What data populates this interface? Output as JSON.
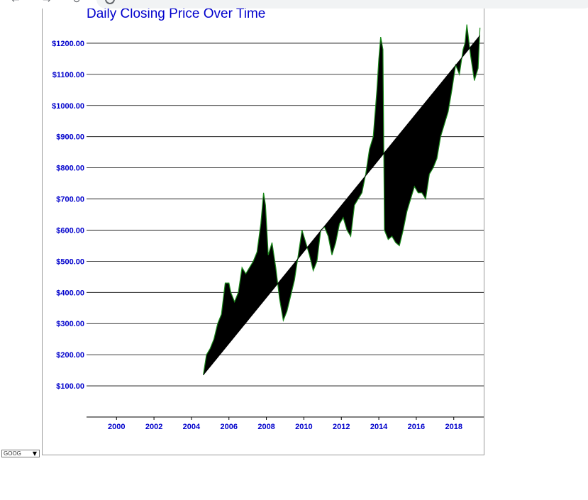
{
  "ticker_select": {
    "value": "GOOG",
    "arrow": "▼"
  },
  "icons": {
    "back": "arrow-left-icon",
    "forward": "arrow-right-icon",
    "reload": "reload-icon",
    "site_info": "info-icon"
  },
  "chart_data": {
    "type": "line",
    "title": "Daily Closing Price Over Time",
    "xlabel": "",
    "ylabel": "",
    "xlim": [
      1998.4,
      2019.6
    ],
    "ylim": [
      0,
      1300
    ],
    "x_ticks": [
      "2000",
      "2002",
      "2004",
      "2006",
      "2008",
      "2010",
      "2012",
      "2014",
      "2016",
      "2018"
    ],
    "y_ticks": [
      "$100.00",
      "$200.00",
      "$300.00",
      "$400.00",
      "$500.00",
      "$600.00",
      "$700.00",
      "$800.00",
      "$900.00",
      "$1000.00",
      "$1100.00",
      "$1200.00"
    ],
    "grid": true,
    "colors": {
      "line": "#1a8a1a",
      "fill": "#000000",
      "ticks": "#0000cc",
      "title": "#0000cc",
      "grid": "#000000"
    },
    "series": [
      {
        "x": [
          2004.63,
          2004.8,
          2005.0,
          2005.2,
          2005.4,
          2005.6,
          2005.8,
          2006.0,
          2006.1,
          2006.3,
          2006.5,
          2006.7,
          2006.9,
          2007.1,
          2007.3,
          2007.5,
          2007.7,
          2007.85,
          2007.95,
          2008.1,
          2008.3,
          2008.5,
          2008.7,
          2008.9,
          2009.1,
          2009.3,
          2009.5,
          2009.7,
          2009.9,
          2010.1,
          2010.3,
          2010.5,
          2010.7,
          2010.9,
          2011.1,
          2011.3,
          2011.5,
          2011.7,
          2011.9,
          2012.1,
          2012.3,
          2012.5,
          2012.7,
          2012.9,
          2013.1,
          2013.3,
          2013.5,
          2013.7,
          2013.9,
          2014.0,
          2014.1,
          2014.22,
          2014.3,
          2014.5,
          2014.7,
          2014.9,
          2015.1,
          2015.3,
          2015.5,
          2015.7,
          2015.9,
          2016.1,
          2016.3,
          2016.5,
          2016.7,
          2016.9,
          2017.1,
          2017.3,
          2017.5,
          2017.7,
          2017.9,
          2018.1,
          2018.3,
          2018.5,
          2018.6,
          2018.7,
          2018.9,
          2019.1,
          2019.3,
          2019.4
        ],
        "values": [
          135,
          200,
          220,
          250,
          300,
          330,
          430,
          430,
          400,
          370,
          400,
          480,
          460,
          480,
          500,
          530,
          620,
          720,
          680,
          520,
          560,
          480,
          380,
          310,
          340,
          390,
          440,
          520,
          600,
          560,
          520,
          470,
          500,
          600,
          610,
          580,
          520,
          560,
          620,
          640,
          600,
          580,
          680,
          700,
          720,
          780,
          860,
          900,
          1050,
          1150,
          1220,
          1180,
          600,
          570,
          580,
          560,
          550,
          600,
          660,
          700,
          740,
          720,
          720,
          700,
          780,
          800,
          830,
          900,
          940,
          980,
          1050,
          1130,
          1100,
          1180,
          1200,
          1260,
          1160,
          1080,
          1120,
          1250
        ]
      },
      {
        "x": [
          2004.63,
          2019.4
        ],
        "values": [
          135,
          1225
        ]
      }
    ]
  }
}
